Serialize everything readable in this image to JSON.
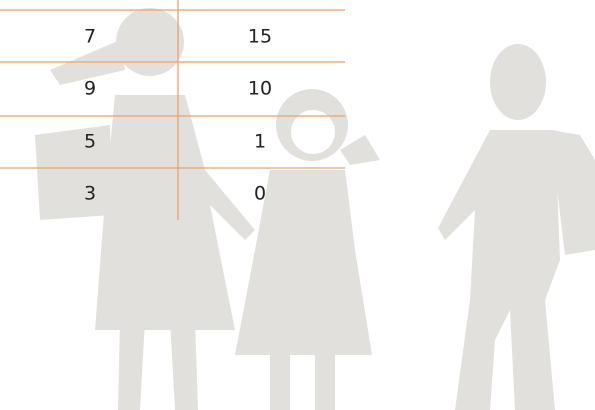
{
  "table": {
    "rows": [
      [
        "7",
        "15"
      ],
      [
        "9",
        "10"
      ],
      [
        "5",
        "1"
      ],
      [
        "3",
        "0"
      ]
    ]
  }
}
